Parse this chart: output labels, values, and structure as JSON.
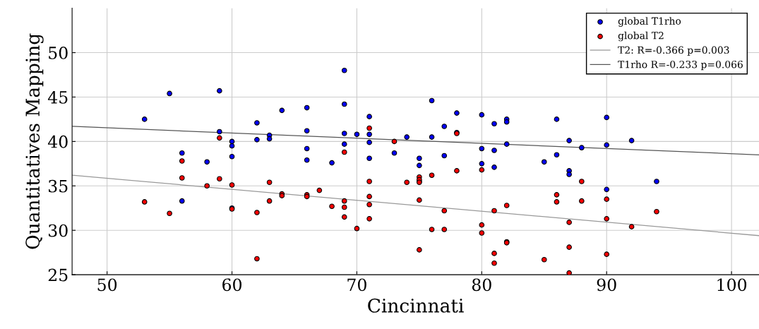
{
  "chart_data": {
    "type": "scatter",
    "xlabel": "Cincinnati",
    "ylabel": "Quantitatives Mapping",
    "xlim": [
      47.2,
      102.2
    ],
    "ylim": [
      25,
      55
    ],
    "xticks": [
      50,
      60,
      70,
      80,
      90,
      100
    ],
    "yticks": [
      25,
      30,
      35,
      40,
      45,
      50
    ],
    "grid": true,
    "legend": "top right",
    "series": [
      {
        "name": "global T1rho",
        "color": "#0000ff",
        "marker": "circle",
        "x": [
          53,
          55,
          56,
          56,
          58,
          59,
          59,
          60,
          60,
          60,
          60,
          62,
          62,
          63,
          63,
          64,
          66,
          66,
          66,
          66,
          68,
          69,
          69,
          69,
          69,
          70,
          71,
          71,
          71,
          71,
          73,
          74,
          75,
          75,
          75,
          76,
          76,
          77,
          77,
          78,
          78,
          80,
          80,
          80,
          81,
          81,
          81,
          82,
          82,
          82,
          85,
          86,
          86,
          87,
          87,
          87,
          88,
          90,
          90,
          90,
          92,
          94
        ],
        "values": [
          42.5,
          45.4,
          38.7,
          33.3,
          37.7,
          45.7,
          41.1,
          40.0,
          39.5,
          38.3,
          32.5,
          42.1,
          40.2,
          40.7,
          40.3,
          43.5,
          43.8,
          41.2,
          39.2,
          37.9,
          37.6,
          48.0,
          44.2,
          40.9,
          39.7,
          40.8,
          42.8,
          40.8,
          39.9,
          38.1,
          38.7,
          40.5,
          38.1,
          37.3,
          35.5,
          44.6,
          40.5,
          41.7,
          38.4,
          43.2,
          41.0,
          43.0,
          39.2,
          37.5,
          42.0,
          39.0,
          37.1,
          42.5,
          42.2,
          39.7,
          37.7,
          42.5,
          38.5,
          40.1,
          36.7,
          36.3,
          39.3,
          42.7,
          39.6,
          34.6,
          40.1,
          35.5
        ]
      },
      {
        "name": "global T2",
        "color": "#ff0000",
        "marker": "circle",
        "x": [
          53,
          55,
          56,
          56,
          58,
          59,
          59,
          60,
          60,
          62,
          62,
          63,
          63,
          64,
          64,
          66,
          66,
          67,
          68,
          69,
          69,
          69,
          69,
          70,
          71,
          71,
          71,
          71,
          71,
          73,
          74,
          75,
          75,
          75,
          75,
          75,
          76,
          76,
          77,
          77,
          78,
          78,
          80,
          80,
          80,
          81,
          81,
          81,
          82,
          82,
          82,
          85,
          86,
          86,
          87,
          87,
          87,
          88,
          88,
          90,
          90,
          90,
          92,
          94
        ],
        "values": [
          33.2,
          31.9,
          37.8,
          35.9,
          35.0,
          40.4,
          35.8,
          35.1,
          32.4,
          32.0,
          26.8,
          35.4,
          33.3,
          34.1,
          33.9,
          34.0,
          33.8,
          34.5,
          32.7,
          38.8,
          33.3,
          32.6,
          31.5,
          30.2,
          41.5,
          35.5,
          33.8,
          32.9,
          31.3,
          40.0,
          35.4,
          36.0,
          35.7,
          35.4,
          33.4,
          27.8,
          36.2,
          30.1,
          32.2,
          30.1,
          40.9,
          36.7,
          36.8,
          30.6,
          29.7,
          32.2,
          27.4,
          26.3,
          32.8,
          28.7,
          28.6,
          26.7,
          34.0,
          33.2,
          30.9,
          28.1,
          25.2,
          35.5,
          33.3,
          33.5,
          31.3,
          27.3,
          30.4,
          32.1
        ]
      },
      {
        "name": "T2: R=-0.366 p=0.003",
        "color": "#999999",
        "type": "line",
        "line_style": "solid",
        "x": [
          47.2,
          102.2
        ],
        "values": [
          36.2,
          29.4
        ]
      },
      {
        "name": "T1rho R=-0.233 p=0.066",
        "color": "#555555",
        "type": "line",
        "line_style": "solid",
        "x": [
          47.2,
          102.2
        ],
        "values": [
          41.7,
          38.5
        ]
      }
    ]
  }
}
